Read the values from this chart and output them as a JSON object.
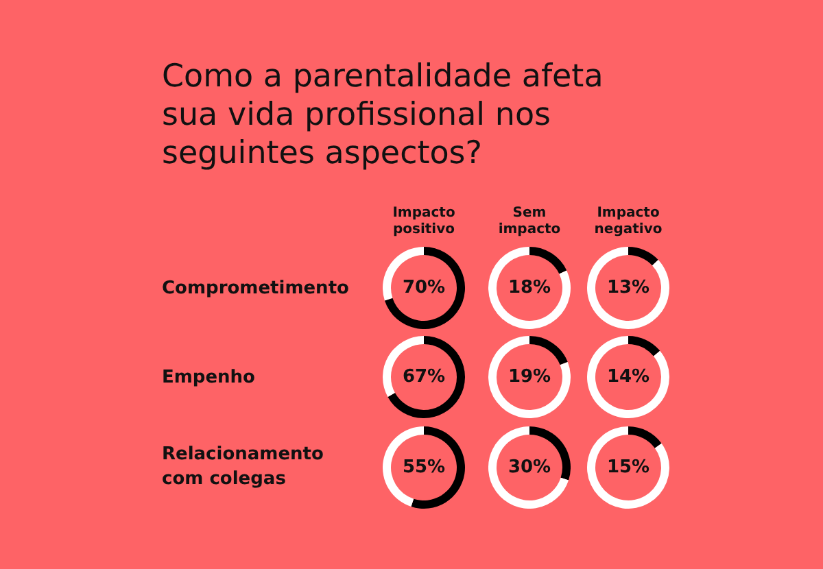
{
  "chart_data": [
    {
      "type": "other",
      "title": "Como a parentalidade afeta sua vida profissional nos seguintes aspectos?",
      "annotations": [
        "Impacto positivo",
        "Sem impacto",
        "Impacto negativo",
        "Comprometimento",
        "Empenho",
        "Relacionamento com colegas"
      ]
    },
    {
      "type": "donut",
      "categories": [
        null,
        null
      ],
      "values": [
        70,
        30
      ],
      "colors": [
        "#000000",
        "#ffffff"
      ],
      "value_labels": [
        "70%",
        null
      ]
    },
    {
      "type": "donut",
      "categories": [
        null,
        null
      ],
      "values": [
        18,
        82
      ],
      "colors": [
        "#000000",
        "#ffffff"
      ],
      "value_labels": [
        "18%",
        null
      ]
    },
    {
      "type": "donut",
      "categories": [
        null,
        null
      ],
      "values": [
        13,
        87
      ],
      "colors": [
        "#000000",
        "#ffffff"
      ],
      "value_labels": [
        "13%",
        null
      ]
    },
    {
      "type": "donut",
      "categories": [
        null,
        null
      ],
      "values": [
        67,
        33
      ],
      "colors": [
        "#000000",
        "#ffffff"
      ],
      "value_labels": [
        "67%",
        null
      ]
    },
    {
      "type": "donut",
      "categories": [
        null,
        null
      ],
      "values": [
        19,
        81
      ],
      "colors": [
        "#000000",
        "#ffffff"
      ],
      "value_labels": [
        "19%",
        null
      ]
    },
    {
      "type": "donut",
      "categories": [
        null,
        null
      ],
      "values": [
        14,
        86
      ],
      "colors": [
        "#000000",
        "#ffffff"
      ],
      "value_labels": [
        "14%",
        null
      ]
    },
    {
      "type": "donut",
      "categories": [
        null,
        null
      ],
      "values": [
        55,
        45
      ],
      "colors": [
        "#000000",
        "#ffffff"
      ],
      "value_labels": [
        "55%",
        null
      ]
    },
    {
      "type": "donut",
      "categories": [
        null,
        null
      ],
      "values": [
        30,
        70
      ],
      "colors": [
        "#000000",
        "#ffffff"
      ],
      "value_labels": [
        "30%",
        null
      ]
    },
    {
      "type": "donut",
      "categories": [
        null,
        null
      ],
      "values": [
        15,
        85
      ],
      "colors": [
        "#000000",
        "#ffffff"
      ],
      "value_labels": [
        "15%",
        null
      ]
    }
  ]
}
